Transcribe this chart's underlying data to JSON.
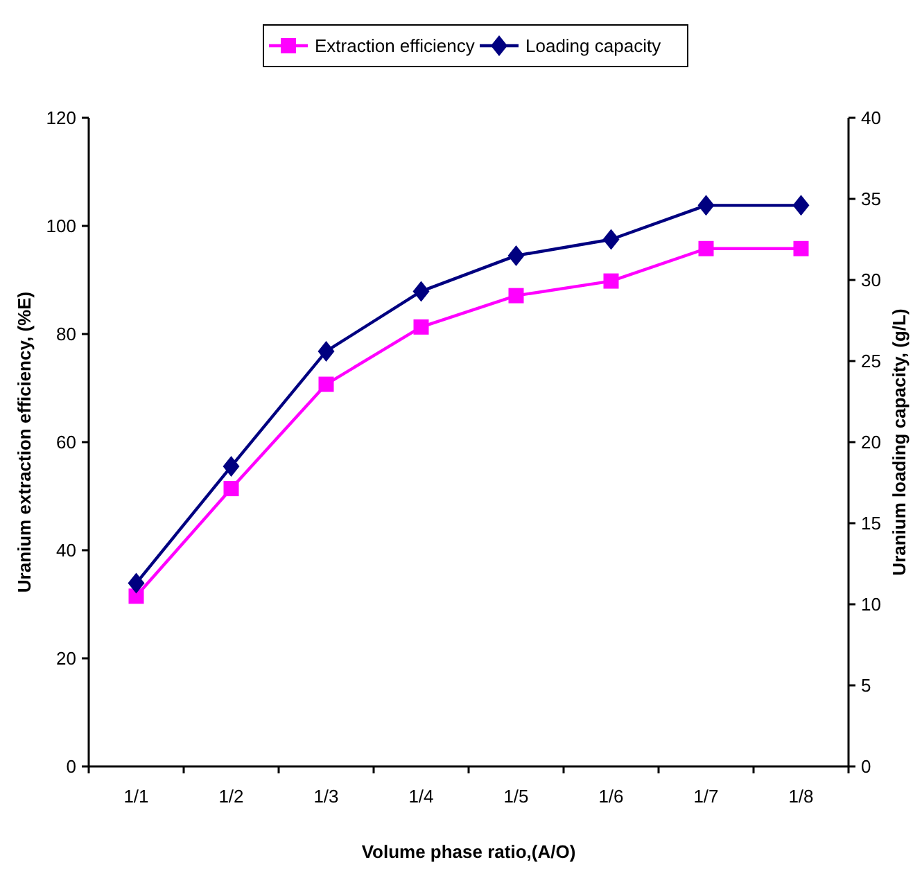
{
  "chart_data": {
    "type": "line",
    "xlabel": "Volume phase ratio,(A/O)",
    "ylabel": "Uranium extraction efficiency, (%E)",
    "y2label": "Uranium loading capacity, (g/L)",
    "categories": [
      "1/1",
      "1/2",
      "1/3",
      "1/4",
      "1/5",
      "1/6",
      "1/7",
      "1/8"
    ],
    "series": [
      {
        "name": "Extraction efficiency",
        "color": "#ff00ff",
        "marker": "square",
        "values": [
          31.5,
          51.4,
          70.7,
          81.3,
          87.1,
          89.8,
          95.8,
          95.8
        ]
      },
      {
        "name": "Loading capacity",
        "color": "#000080",
        "marker": "diamond",
        "axis": "y2",
        "values": [
          11.3,
          18.5,
          25.6,
          29.3,
          31.5,
          32.5,
          34.6,
          34.6
        ]
      }
    ],
    "ylim": [
      0,
      120
    ],
    "yticks": [
      0,
      20,
      40,
      60,
      80,
      100,
      120
    ],
    "y2lim": [
      0,
      40
    ],
    "y2ticks": [
      0,
      5,
      10,
      15,
      20,
      25,
      30,
      35,
      40
    ],
    "grid": false,
    "legend": "top",
    "line_style": "solid"
  }
}
